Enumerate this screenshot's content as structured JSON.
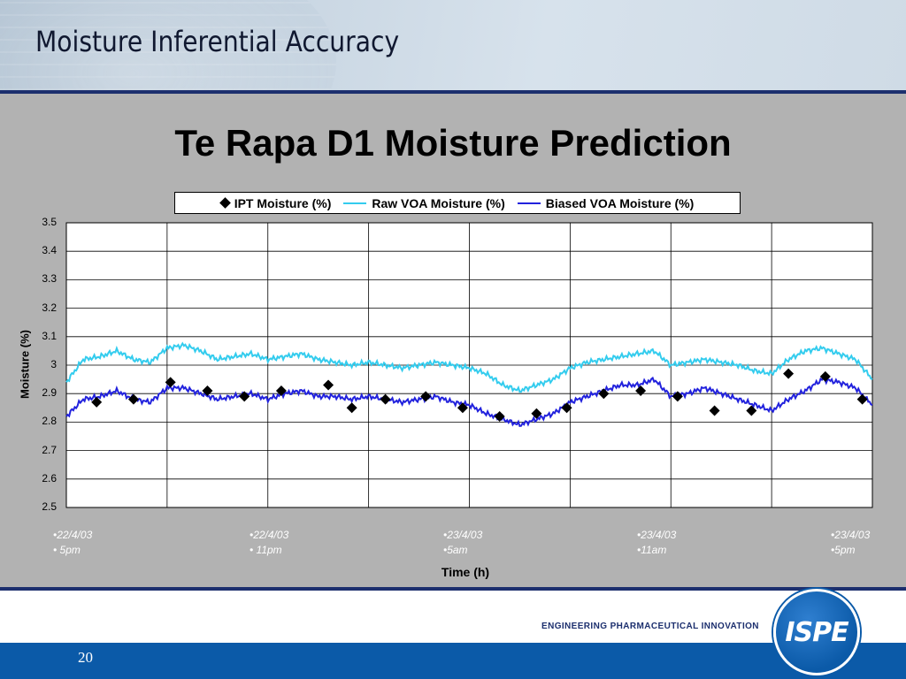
{
  "slide": {
    "title": "Moisture Inferential Accuracy",
    "page_number": "20",
    "tagline": "ENGINEERING PHARMACEUTICAL INNOVATION",
    "logo_text": "ISPE"
  },
  "colors": {
    "header_rule": "#1c2f6e",
    "panel_background": "#b2b2b2",
    "footer": "#0b5aa8",
    "ipt": "#000000",
    "raw_voa": "#33ccee",
    "biased_voa": "#2222dd"
  },
  "chart_data": {
    "type": "line",
    "title": "Te Rapa D1 Moisture Prediction",
    "xlabel": "Time (h)",
    "ylabel": "Moisture (%)",
    "ylim": [
      2.5,
      3.5
    ],
    "yticks": [
      "2.5",
      "2.6",
      "2.7",
      "2.8",
      "2.9",
      "3",
      "3.1",
      "3.2",
      "3.3",
      "3.4",
      "3.5"
    ],
    "xlim": [
      0,
      24
    ],
    "x_tick_labels": [
      {
        "line1": "•22/4/03",
        "line2": "• 5pm"
      },
      {
        "line1": "•22/4/03",
        "line2": "• 11pm"
      },
      {
        "line1": "•23/4/03",
        "line2": "•5am"
      },
      {
        "line1": "•23/4/03",
        "line2": "•11am"
      },
      {
        "line1": "•23/4/03",
        "line2": "•5pm"
      }
    ],
    "grid": true,
    "legend_position": "top-center",
    "series": [
      {
        "name": "IPT Moisture (%)",
        "style": "marker",
        "x": [
          0.9,
          2.0,
          3.1,
          4.2,
          5.3,
          6.4,
          7.8,
          8.5,
          9.5,
          10.7,
          11.8,
          12.9,
          14.0,
          14.9,
          16.0,
          17.1,
          18.2,
          19.3,
          20.4,
          21.5,
          22.6,
          23.7
        ],
        "y": [
          2.87,
          2.88,
          2.94,
          2.91,
          2.89,
          2.91,
          2.93,
          2.85,
          2.88,
          2.89,
          2.85,
          2.82,
          2.83,
          2.85,
          2.9,
          2.91,
          2.89,
          2.84,
          2.84,
          2.97,
          2.96,
          2.88
        ]
      },
      {
        "name": "Raw VOA Moisture (%)",
        "style": "line",
        "x": [
          0,
          0.5,
          1.0,
          1.5,
          2.0,
          2.5,
          3.0,
          3.5,
          4.0,
          4.5,
          5.0,
          5.5,
          6.0,
          6.5,
          7.0,
          7.5,
          8.0,
          8.5,
          9.0,
          9.5,
          10.0,
          10.5,
          11.0,
          11.5,
          12.0,
          12.5,
          13.0,
          13.5,
          14.0,
          14.5,
          15.0,
          15.5,
          16.0,
          16.5,
          17.0,
          17.5,
          18.0,
          18.5,
          19.0,
          19.5,
          20.0,
          20.5,
          21.0,
          21.5,
          22.0,
          22.5,
          23.0,
          23.5,
          24.0
        ],
        "y": [
          2.94,
          3.02,
          3.03,
          3.05,
          3.02,
          3.01,
          3.06,
          3.07,
          3.05,
          3.02,
          3.03,
          3.04,
          3.02,
          3.03,
          3.04,
          3.02,
          3.01,
          3.0,
          3.01,
          3.0,
          2.99,
          3.0,
          3.01,
          3.0,
          2.99,
          2.97,
          2.93,
          2.91,
          2.93,
          2.95,
          2.99,
          3.01,
          3.02,
          3.03,
          3.04,
          3.05,
          3.0,
          3.01,
          3.02,
          3.01,
          3.0,
          2.98,
          2.97,
          3.02,
          3.05,
          3.06,
          3.04,
          3.02,
          2.95
        ]
      },
      {
        "name": "Biased VOA Moisture (%)",
        "style": "line",
        "x": [
          0,
          0.5,
          1.0,
          1.5,
          2.0,
          2.5,
          3.0,
          3.5,
          4.0,
          4.5,
          5.0,
          5.5,
          6.0,
          6.5,
          7.0,
          7.5,
          8.0,
          8.5,
          9.0,
          9.5,
          10.0,
          10.5,
          11.0,
          11.5,
          12.0,
          12.5,
          13.0,
          13.5,
          14.0,
          14.5,
          15.0,
          15.5,
          16.0,
          16.5,
          17.0,
          17.5,
          18.0,
          18.5,
          19.0,
          19.5,
          20.0,
          20.5,
          21.0,
          21.5,
          22.0,
          22.5,
          23.0,
          23.5,
          24.0
        ],
        "y": [
          2.82,
          2.88,
          2.89,
          2.91,
          2.88,
          2.87,
          2.92,
          2.92,
          2.9,
          2.88,
          2.89,
          2.9,
          2.88,
          2.9,
          2.91,
          2.89,
          2.89,
          2.88,
          2.89,
          2.88,
          2.87,
          2.88,
          2.89,
          2.87,
          2.86,
          2.83,
          2.81,
          2.79,
          2.81,
          2.83,
          2.87,
          2.89,
          2.91,
          2.93,
          2.93,
          2.95,
          2.89,
          2.9,
          2.92,
          2.9,
          2.88,
          2.86,
          2.84,
          2.88,
          2.91,
          2.95,
          2.94,
          2.92,
          2.86
        ]
      }
    ]
  }
}
